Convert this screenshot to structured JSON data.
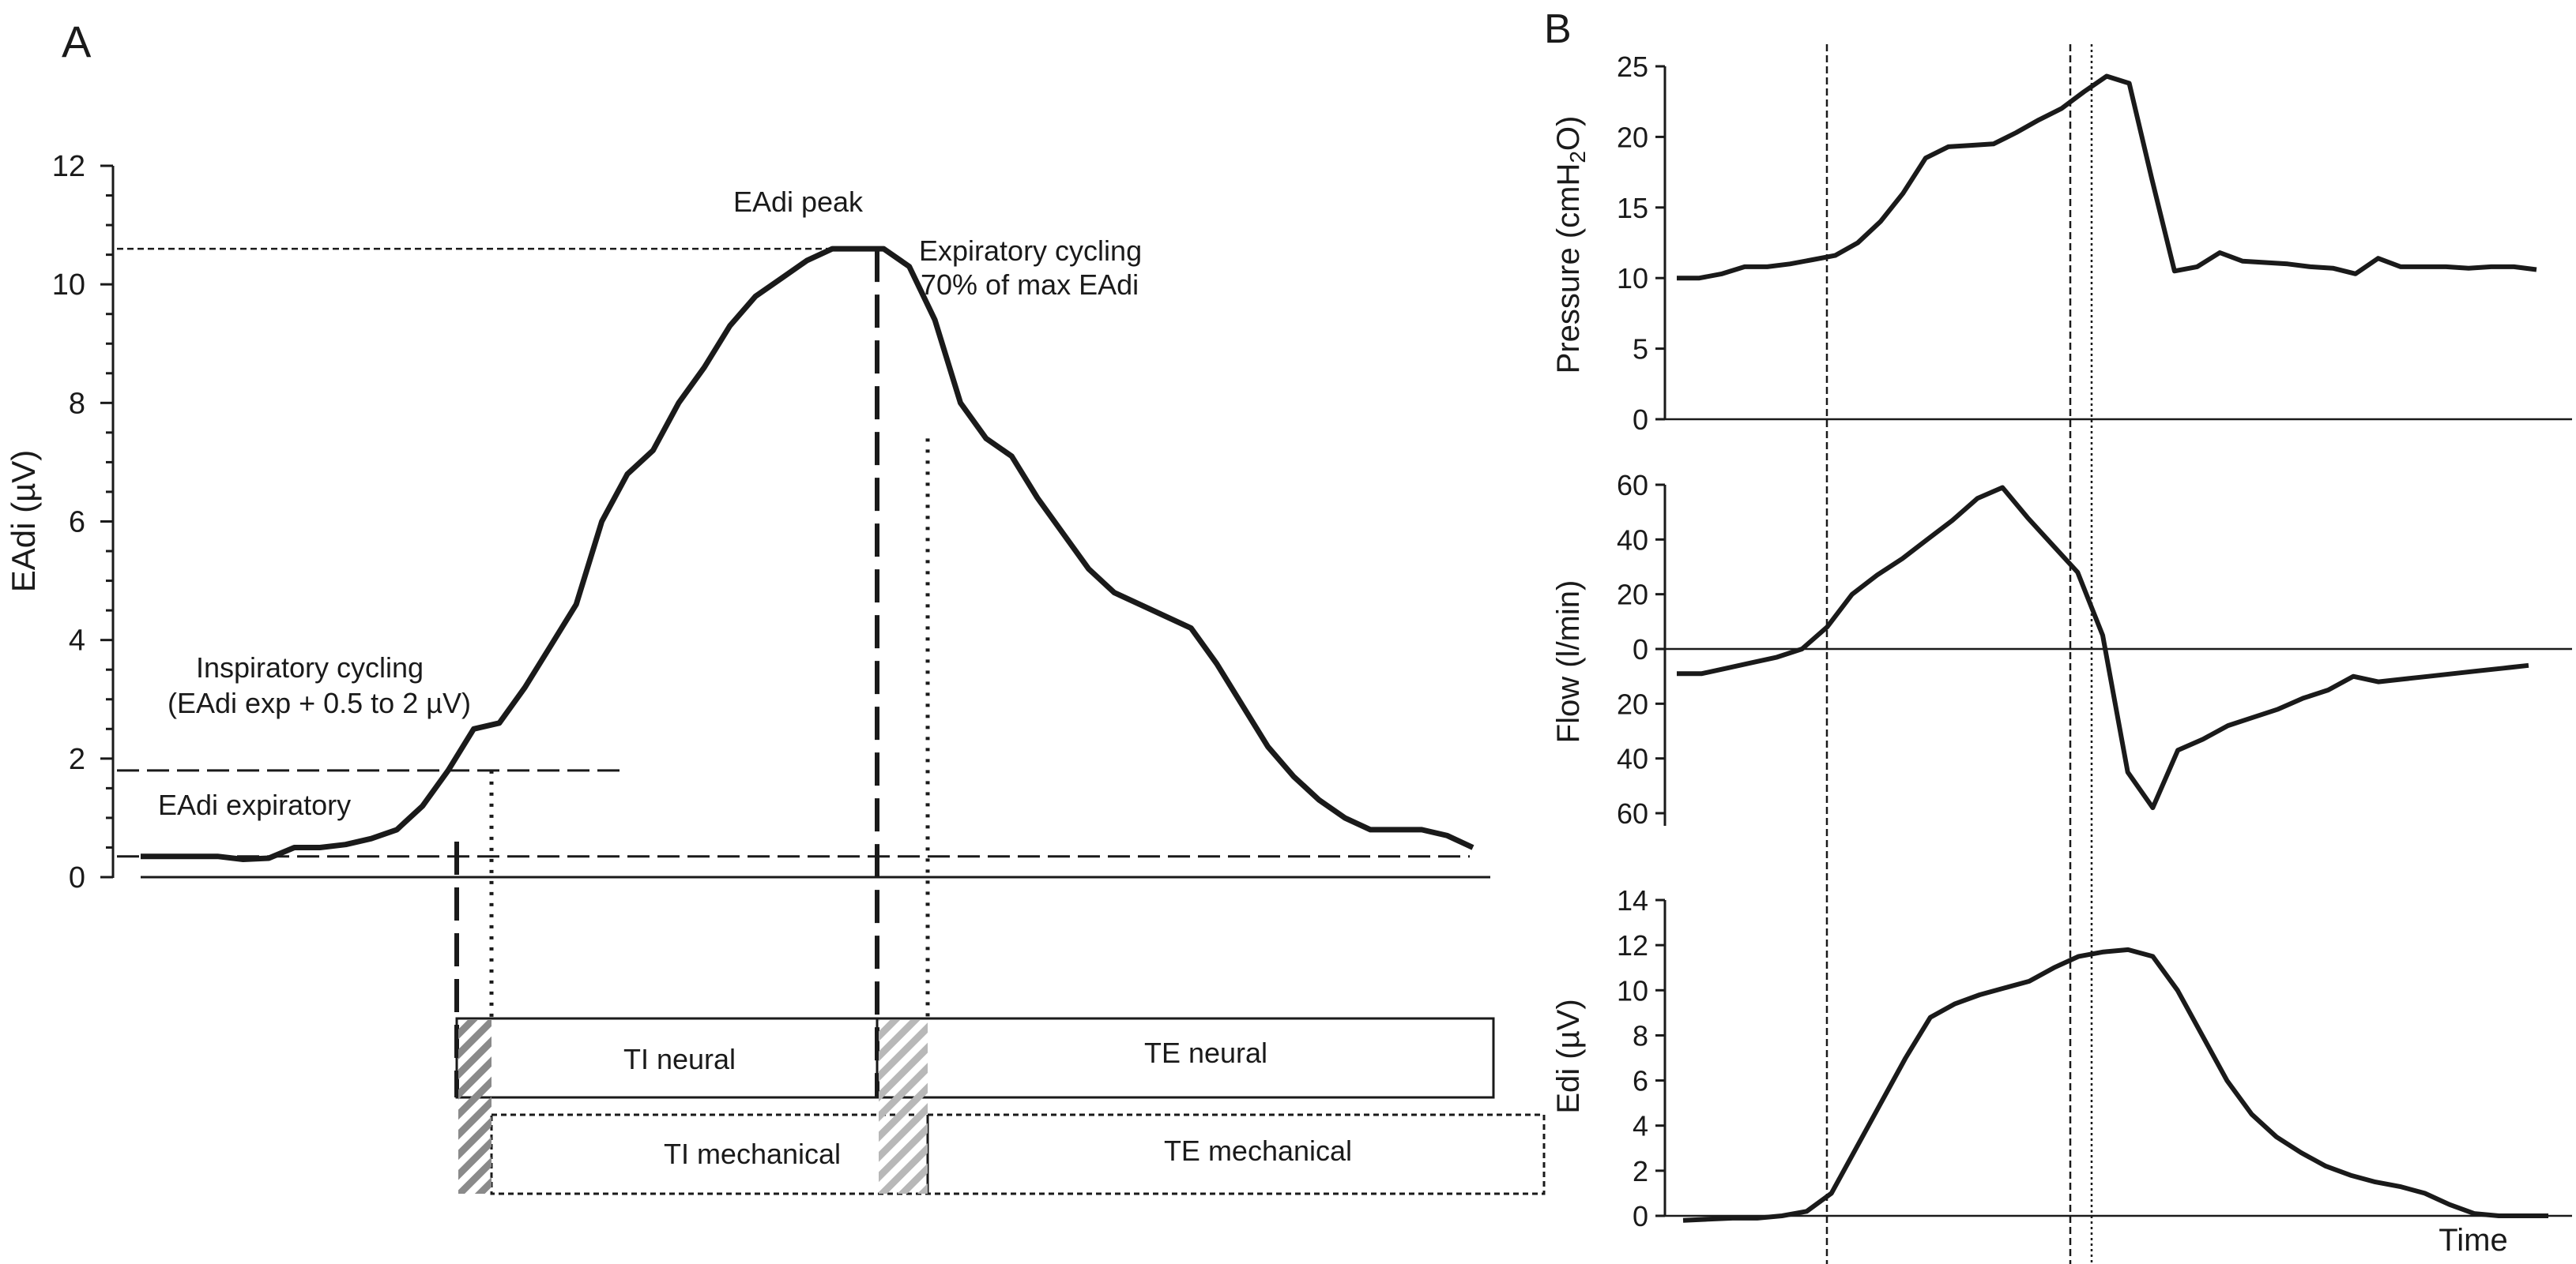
{
  "panelA": {
    "label": "A",
    "ylabel": "EAdi (µV)",
    "ylim": [
      0,
      12
    ],
    "yticks": [
      "0",
      "2",
      "4",
      "6",
      "8",
      "10",
      "12"
    ],
    "annotations": {
      "peak": "EAdi peak",
      "exp_cycling_1": "Expiratory cycling",
      "exp_cycling_2": "70% of max EAdi",
      "insp_cycling_1": "Inspiratory cycling",
      "insp_cycling_2": "(EAdi exp + 0.5 to 2 µV)",
      "expiratory": "EAdi expiratory"
    },
    "reference_levels": {
      "peak": 10.6,
      "expiratory": 0.35,
      "inspiratory_trigger": 1.8
    },
    "phase_boxes": {
      "ti_neural": "TI neural",
      "te_neural": "TE neural",
      "ti_mechanical": "TI mechanical",
      "te_mechanical": "TE mechanical"
    }
  },
  "panelB": {
    "label": "B",
    "xlabel": "Time",
    "pressure": {
      "ylabel": "Pressure (cmH2O)",
      "ylim": [
        0,
        25
      ],
      "yticks": [
        "0",
        "5",
        "10",
        "15",
        "20",
        "25"
      ]
    },
    "flow": {
      "ylabel": "Flow (l/min)",
      "yticks": [
        "60",
        "40",
        "20",
        "0",
        "20",
        "40",
        "60"
      ]
    },
    "edi": {
      "ylabel": "Edi (µV)",
      "ylim": [
        0,
        14
      ],
      "yticks": [
        "0",
        "2",
        "4",
        "6",
        "8",
        "10",
        "12",
        "14"
      ]
    }
  },
  "chart_data": [
    {
      "type": "line",
      "panel": "A",
      "ylabel": "EAdi (µV)",
      "ylim": [
        0,
        12
      ],
      "series": [
        {
          "values": [
            0.35,
            0.35,
            0.35,
            0.35,
            0.3,
            0.32,
            0.5,
            0.5,
            0.55,
            0.65,
            0.8,
            1.2,
            1.8,
            2.5,
            2.6,
            3.2,
            3.9,
            4.6,
            6.0,
            6.8,
            7.2,
            8.0,
            8.6,
            9.3,
            9.8,
            10.1,
            10.4,
            10.6,
            10.6,
            10.6,
            10.3,
            9.4,
            8.0,
            7.4,
            7.1,
            6.4,
            5.8,
            5.2,
            4.8,
            4.6,
            4.4,
            4.2,
            3.6,
            2.9,
            2.2,
            1.7,
            1.3,
            1.0,
            0.8,
            0.8,
            0.8,
            0.7,
            0.5
          ]
        }
      ]
    },
    {
      "type": "line",
      "panel": "B-pressure",
      "ylabel": "Pressure (cmH2O)",
      "ylim": [
        0,
        25
      ],
      "series": [
        {
          "values": [
            10,
            10,
            10.3,
            10.8,
            10.8,
            11,
            11.3,
            11.6,
            12.5,
            14,
            16,
            18.5,
            19.3,
            19.4,
            19.5,
            20.3,
            21.2,
            22,
            23.2,
            24.3,
            23.8,
            17,
            10.5,
            10.8,
            11.8,
            11.2,
            11.1,
            11,
            10.8,
            10.7,
            10.3,
            11.4,
            10.8,
            10.8,
            10.8,
            10.7,
            10.8,
            10.8,
            10.6
          ]
        }
      ]
    },
    {
      "type": "line",
      "panel": "B-flow",
      "ylabel": "Flow (l/min)",
      "ylim": [
        -60,
        60
      ],
      "series": [
        {
          "values": [
            -9,
            -9,
            -7,
            -5,
            -3,
            0,
            8,
            20,
            27,
            33,
            40,
            47,
            55,
            59,
            48,
            38,
            28,
            5,
            -45,
            -58,
            -37,
            -33,
            -28,
            -25,
            -22,
            -18,
            -15,
            -10,
            -12,
            -11,
            -10,
            -9,
            -8,
            -7,
            -6
          ]
        }
      ]
    },
    {
      "type": "line",
      "panel": "B-edi",
      "xlabel": "Time",
      "ylabel": "Edi (µV)",
      "ylim": [
        0,
        14
      ],
      "series": [
        {
          "values": [
            -0.2,
            -0.15,
            -0.1,
            -0.1,
            0,
            0.2,
            1.0,
            3.0,
            5.0,
            7.0,
            8.8,
            9.4,
            9.8,
            10.1,
            10.4,
            11.0,
            11.5,
            11.7,
            11.8,
            11.5,
            10.0,
            8.0,
            6.0,
            4.5,
            3.5,
            2.8,
            2.2,
            1.8,
            1.5,
            1.3,
            1.0,
            0.5,
            0.1,
            0,
            0,
            0
          ]
        }
      ]
    }
  ]
}
